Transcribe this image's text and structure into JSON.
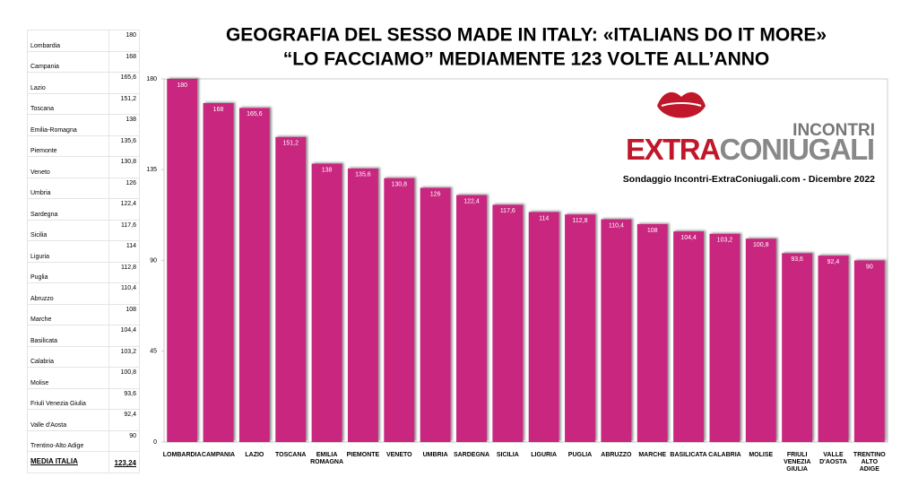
{
  "table": {
    "rows": [
      "Lombardia",
      "Campania",
      "Lazio",
      "Toscana",
      "Emilia-Romagna",
      "Piemonte",
      "Veneto",
      "Umbria",
      "Sardegna",
      "Sicilia",
      "Liguria",
      "Puglia",
      "Abruzzo",
      "Marche",
      "Basilicata",
      "Calabria",
      "Molise",
      "Friuli Venezia Giulia",
      "Valle d'Aosta",
      "Trentino-Alto Adige"
    ],
    "footer": [
      "MEDIA ITALIA",
      "123,24"
    ]
  },
  "logo": {
    "top": "INCONTRI",
    "extra": "EXTRA",
    "coniugali": "CONIUGALI",
    "caption": "Sondaggio Incontri-ExtraConiugali.com - Dicembre 2022"
  },
  "chart_data": {
    "type": "bar",
    "title": "GEOGRAFIA DEL SESSO MADE IN ITALY: «ITALIANS DO IT MORE»",
    "subtitle": "“LO FACCIAMO” MEDIAMENTE 123 VOLTE ALL’ANNO",
    "categories": [
      "LOMBARDIA",
      "CAMPANIA",
      "LAZIO",
      "TOSCANA",
      "EMILIA ROMAGNA",
      "PIEMONTE",
      "VENETO",
      "UMBRIA",
      "SARDEGNA",
      "SICILIA",
      "LIGURIA",
      "PUGLIA",
      "ABRUZZO",
      "MARCHE",
      "BASILICATA",
      "CALABRIA",
      "MOLISE",
      "FRIULI VENEZIA GIULIA",
      "VALLE D'AOSTA",
      "TRENTINO ALTO ADIGE"
    ],
    "values": [
      180,
      168,
      165.6,
      151.2,
      138,
      135.6,
      130.8,
      126,
      122.4,
      117.6,
      114,
      112.8,
      110.4,
      108,
      104.4,
      103.2,
      100.8,
      93.6,
      92.4,
      90
    ],
    "value_labels": [
      "180",
      "168",
      "165,6",
      "151,2",
      "138",
      "135,6",
      "130,8",
      "126",
      "122,4",
      "117,6",
      "114",
      "112,8",
      "110,4",
      "108",
      "104,4",
      "103,2",
      "100,8",
      "93,6",
      "92,4",
      "90"
    ],
    "color": "#c9277f",
    "ylim": [
      0,
      180
    ],
    "yticks": [
      0,
      45,
      90,
      135,
      180
    ],
    "grid": false
  }
}
